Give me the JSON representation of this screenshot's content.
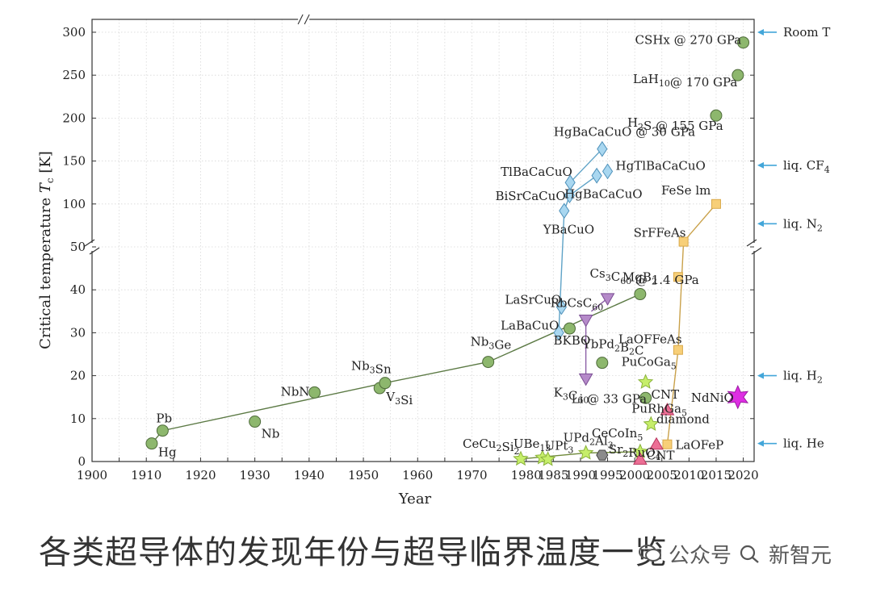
{
  "caption": "各类超导体的发现年份与超导临界温度一览",
  "watermark": {
    "account_label": "公众号",
    "name": "新智元",
    "logo_icon": "wechat-icon",
    "separator_icon": "search-icon"
  },
  "colors": {
    "conventional": "#8db76d",
    "cuprate": "#a9d7f0",
    "fulleride": "#b58ac9",
    "iron": "#f7cf78",
    "heavy_fermion": "#c6ee6a",
    "carbon": "#ec6f95",
    "nickelate": "#de2ee3",
    "ruthenate": "#8b8b8b",
    "reference_arrow": "#43a6d9"
  },
  "chart_data": {
    "type": "scatter",
    "xlabel": "Year",
    "ylabel_main": "Critical temperature ",
    "ylabel_italic": "T",
    "ylabel_sub": "c",
    "ylabel_unit": " [K]",
    "xlim": [
      1900,
      2022
    ],
    "ylim_lower": [
      0,
      50
    ],
    "ylim_upper": [
      50,
      315
    ],
    "xticks": [
      "1900",
      "1905",
      "1910",
      "1915",
      "1920",
      "1925",
      "1930",
      "1935",
      "1940",
      "1945",
      "1950",
      "1955",
      "1960",
      "1965",
      "1970",
      "1975",
      "1980",
      "1985",
      "1990",
      "1995",
      "2000",
      "2005",
      "2010",
      "2015",
      "2020"
    ],
    "yticks_lower": [
      "0",
      "10",
      "20",
      "30",
      "40",
      "50"
    ],
    "yticks_upper": [
      "100",
      "150",
      "200",
      "250",
      "300"
    ],
    "grid": true,
    "legend": "none",
    "points": [
      {
        "label": "Hg",
        "x": 1911,
        "y": 4.2,
        "family": "conventional",
        "shape": "circle"
      },
      {
        "label": "Pb",
        "x": 1913,
        "y": 7.2,
        "family": "conventional",
        "shape": "circle"
      },
      {
        "label": "Nb",
        "x": 1930,
        "y": 9.3,
        "family": "conventional",
        "shape": "circle"
      },
      {
        "label": "NbN",
        "x": 1941,
        "y": 16.1,
        "family": "conventional",
        "shape": "circle"
      },
      {
        "label": "V3Si",
        "x": 1953,
        "y": 17.1,
        "family": "conventional",
        "shape": "circle"
      },
      {
        "label": "Nb3Sn",
        "x": 1954,
        "y": 18.3,
        "family": "conventional",
        "shape": "circle"
      },
      {
        "label": "Nb3Ge",
        "x": 1973,
        "y": 23.2,
        "family": "conventional",
        "shape": "circle"
      },
      {
        "label": "BKBO",
        "x": 1988,
        "y": 31,
        "family": "conventional",
        "shape": "circle"
      },
      {
        "label": "YbPd2B2C",
        "x": 1994,
        "y": 23,
        "family": "conventional",
        "shape": "circle"
      },
      {
        "label": "MgB2",
        "x": 2001,
        "y": 39,
        "family": "conventional",
        "shape": "circle"
      },
      {
        "label": "Li @ 33 GPa",
        "x": 2002,
        "y": 14.8,
        "family": "conventional",
        "shape": "circle"
      },
      {
        "label": "H2S @ 155 GPa",
        "x": 2015,
        "y": 203,
        "family": "conventional",
        "shape": "circle"
      },
      {
        "label": "LaH10@ 170 GPa",
        "x": 2019,
        "y": 250,
        "family": "conventional",
        "shape": "circle"
      },
      {
        "label": "CSHx @ 270 GPa",
        "x": 2020,
        "y": 288,
        "family": "conventional",
        "shape": "circle"
      },
      {
        "label": "LaBaCuO",
        "x": 1986,
        "y": 30,
        "family": "cuprate",
        "shape": "diamond"
      },
      {
        "label": "LaSrCuO",
        "x": 1986.5,
        "y": 36,
        "family": "cuprate",
        "shape": "diamond"
      },
      {
        "label": "YBaCuO",
        "x": 1987,
        "y": 92,
        "family": "cuprate",
        "shape": "diamond"
      },
      {
        "label": "BiSrCaCuO",
        "x": 1988,
        "y": 110,
        "family": "cuprate",
        "shape": "diamond"
      },
      {
        "label": "TlBaCaCuO",
        "x": 1988.1,
        "y": 125,
        "family": "cuprate",
        "shape": "diamond"
      },
      {
        "label": "HgBaCaCuO",
        "x": 1993,
        "y": 133,
        "family": "cuprate",
        "shape": "diamond"
      },
      {
        "label": "HgTlBaCaCuO",
        "x": 1995,
        "y": 138,
        "family": "cuprate",
        "shape": "diamond"
      },
      {
        "label": "HgBaCaCuO @ 30 GPa",
        "x": 1994,
        "y": 164,
        "family": "cuprate",
        "shape": "diamond"
      },
      {
        "label": "K3C60",
        "x": 1991,
        "y": 19.3,
        "family": "fulleride",
        "shape": "triangle-down"
      },
      {
        "label": "RbCsC60",
        "x": 1991,
        "y": 33,
        "family": "fulleride",
        "shape": "triangle-down"
      },
      {
        "label": "Cs3C60 @ 1.4 GPa",
        "x": 1995,
        "y": 38,
        "family": "fulleride",
        "shape": "triangle-down"
      },
      {
        "label": "LaOFeP",
        "x": 2006,
        "y": 4,
        "family": "iron",
        "shape": "square"
      },
      {
        "label": "LaOFFeAs",
        "x": 2008,
        "y": 26,
        "family": "iron",
        "shape": "square"
      },
      {
        "label": "",
        "x": 2008,
        "y": 43,
        "family": "iron",
        "shape": "square"
      },
      {
        "label": "SrFFeAs",
        "x": 2009,
        "y": 56,
        "family": "iron",
        "shape": "square"
      },
      {
        "label": "FeSe lm",
        "x": 2015,
        "y": 100,
        "family": "iron",
        "shape": "square"
      },
      {
        "label": "CeCu2Si2",
        "x": 1979,
        "y": 0.6,
        "family": "heavy_fermion",
        "shape": "star"
      },
      {
        "label": "UBe13",
        "x": 1983,
        "y": 0.9,
        "family": "heavy_fermion",
        "shape": "star"
      },
      {
        "label": "UPt3",
        "x": 1984,
        "y": 0.5,
        "family": "heavy_fermion",
        "shape": "star"
      },
      {
        "label": "UPd2Al3",
        "x": 1991,
        "y": 2,
        "family": "heavy_fermion",
        "shape": "star"
      },
      {
        "label": "CeCoIn5",
        "x": 2001,
        "y": 2.3,
        "family": "heavy_fermion",
        "shape": "star"
      },
      {
        "label": "PuCoGa5",
        "x": 2002,
        "y": 18.5,
        "family": "heavy_fermion",
        "shape": "star"
      },
      {
        "label": "PuRhGa5",
        "x": 2003,
        "y": 8.7,
        "family": "heavy_fermion",
        "shape": "star"
      },
      {
        "label": "Sr2RuO4",
        "x": 1994,
        "y": 1.5,
        "family": "ruthenate",
        "shape": "hexagon"
      },
      {
        "label": "CNT",
        "x": 2001,
        "y": 0.5,
        "family": "carbon",
        "shape": "triangle-up"
      },
      {
        "label": "diamond",
        "x": 2004,
        "y": 4,
        "family": "carbon",
        "shape": "triangle-up"
      },
      {
        "label": "CNT",
        "x": 2006,
        "y": 12,
        "family": "carbon",
        "shape": "triangle-up"
      },
      {
        "label": "NdNiO",
        "x": 2019,
        "y": 15,
        "family": "nickelate",
        "shape": "star-large"
      }
    ],
    "trend_lines": [
      {
        "family": "conventional",
        "points": [
          [
            1911,
            4.2
          ],
          [
            1913,
            7.2
          ],
          [
            1954,
            18.3
          ],
          [
            1973,
            23.2
          ],
          [
            2001,
            39
          ]
        ]
      },
      {
        "family": "conventional",
        "points": [
          [
            1956,
            0.2
          ],
          [
            1956,
            0.2
          ]
        ]
      },
      {
        "family": "cuprate",
        "points": [
          [
            1986,
            30
          ],
          [
            1987,
            92
          ],
          [
            1988,
            110
          ],
          [
            1993,
            133
          ]
        ]
      },
      {
        "family": "cuprate",
        "points": [
          [
            1988.1,
            125
          ],
          [
            1994,
            164
          ]
        ]
      },
      {
        "family": "fulleride",
        "points": [
          [
            1991,
            19.3
          ],
          [
            1991,
            33
          ]
        ]
      },
      {
        "family": "fulleride",
        "points": [
          [
            1992,
            35
          ],
          [
            1995,
            38
          ]
        ]
      },
      {
        "family": "heavy_fermion",
        "points": [
          [
            1979,
            0.6
          ],
          [
            1991,
            2
          ],
          [
            2001,
            2.3
          ]
        ]
      },
      {
        "family": "iron",
        "points": [
          [
            2006,
            4
          ],
          [
            2008,
            26
          ],
          [
            2009,
            56
          ],
          [
            2015,
            100
          ]
        ]
      }
    ],
    "reference_temps": [
      {
        "label": "Room T",
        "y": 300
      },
      {
        "label": "liq. CF4",
        "y": 145
      },
      {
        "label": "liq. N2",
        "y": 77
      },
      {
        "label": "liq. H2",
        "y": 20
      },
      {
        "label": "liq. He",
        "y": 4.2
      }
    ]
  }
}
